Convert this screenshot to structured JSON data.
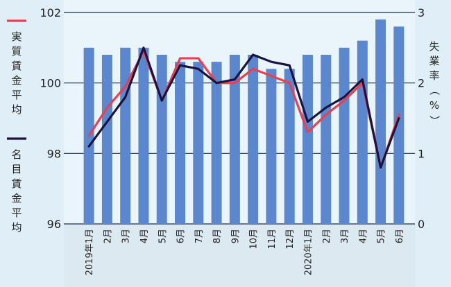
{
  "chart_data": {
    "type": "bar",
    "categories": [
      "2019年1月",
      "2月",
      "3月",
      "4月",
      "5月",
      "6月",
      "7月",
      "8月",
      "9月",
      "10月",
      "11月",
      "12月",
      "2020年1月",
      "2月",
      "3月",
      "4月",
      "5月",
      "6月"
    ],
    "ylim": [
      96,
      102
    ],
    "y_ticks": [
      "96",
      "98",
      "100",
      "102"
    ],
    "y2lim": [
      0,
      3
    ],
    "y2_ticks": [
      "0",
      "1",
      "2",
      "3"
    ],
    "y2label": "失業率（%）",
    "grid": true,
    "series": [
      {
        "name": "失業率",
        "kind": "bar",
        "axis": "right",
        "color": "#5b87cf",
        "values": [
          2.5,
          2.4,
          2.5,
          2.5,
          2.4,
          2.3,
          2.3,
          2.3,
          2.4,
          2.4,
          2.2,
          2.2,
          2.4,
          2.4,
          2.5,
          2.6,
          2.9,
          2.8
        ]
      },
      {
        "name": "実質賃金平均",
        "kind": "line",
        "axis": "left",
        "color": "#e8404f",
        "values": [
          98.5,
          99.3,
          99.9,
          100.9,
          99.5,
          100.7,
          100.7,
          100.0,
          100.0,
          100.4,
          100.2,
          100.0,
          98.6,
          99.1,
          99.5,
          100.0,
          97.6,
          99.1
        ]
      },
      {
        "name": "名目賃金平均",
        "kind": "line",
        "axis": "left",
        "color": "#1a1340",
        "values": [
          98.2,
          98.9,
          99.6,
          101.0,
          99.5,
          100.5,
          100.4,
          100.0,
          100.1,
          100.8,
          100.6,
          100.5,
          98.9,
          99.3,
          99.6,
          100.1,
          97.6,
          99.0
        ]
      }
    ],
    "legend": [
      {
        "label": "実質賃金平均",
        "color": "#e8404f",
        "chars": [
          "実",
          "質",
          "賃",
          "金",
          "平",
          "均"
        ]
      },
      {
        "label": "名目賃金平均",
        "color": "#1a1340",
        "chars": [
          "名",
          "目",
          "賃",
          "金",
          "平",
          "均"
        ]
      }
    ],
    "y2label_chars": [
      "失",
      "業",
      "率",
      "（",
      "%",
      "）"
    ]
  }
}
